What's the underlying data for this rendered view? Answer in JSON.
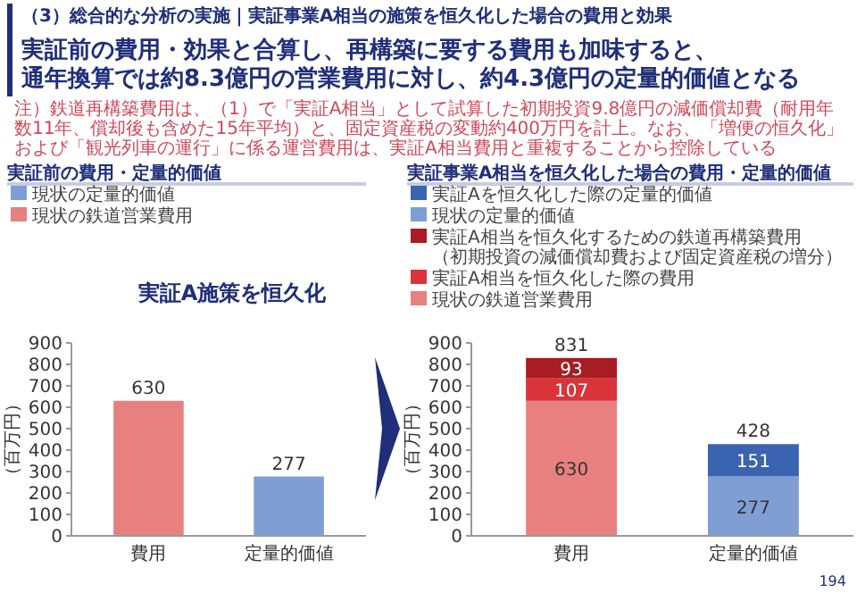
{
  "chart_data": [
    {
      "type": "other",
      "subtitle": "（3）総合的な分析の実施｜実証事業A相当の施策を恒久化した場合の費用と効果",
      "title": "実証前の費用・効果と合算し、再構築に要する費用も加味すると、通年換算では約8.3億円の営業費用に対し、約4.3億円の定量的価値となる",
      "annotations": [
        "注）鉄道再構築費用は、（1）で「実証A相当」として試算した初期投資9.8億円の減価償却費（耐用年数11年、償却後も含めた15年平均）と、固定資産税の変動約400万円を計上。なお、「増便の恒久化」および「観光列車の運行」に係る運営費用は、実証A相当費用と重複することから控除している",
        "実証A施策を恒久化",
        "194"
      ]
    },
    {
      "type": "bar",
      "title": "実証前の費用・定量的価値",
      "ylabel": "（百万円）",
      "categories": [
        "費用",
        "定量的価値"
      ],
      "stacked": true,
      "legend": "top left",
      "data_labels": true,
      "ylim": [
        0,
        900
      ],
      "yticks": [
        0,
        100,
        200,
        300,
        400,
        500,
        600,
        700,
        800,
        900
      ],
      "series": [
        {
          "name": "現状の鉄道営業費用",
          "color": "#e88080",
          "values": [
            630,
            null
          ]
        },
        {
          "name": "現状の定量的価値",
          "color": "#7f9fd4",
          "values": [
            null,
            277
          ]
        }
      ]
    },
    {
      "type": "bar",
      "title": "実証事業A相当を恒久化した場合の費用・定量的価値",
      "ylabel": "（百万円）",
      "categories": [
        "費用",
        "定量的価値"
      ],
      "stacked": true,
      "legend": "top left",
      "data_labels": true,
      "totals": [
        "831",
        "428"
      ],
      "ylim": [
        0,
        900
      ],
      "yticks": [
        0,
        100,
        200,
        300,
        400,
        500,
        600,
        700,
        800,
        900
      ],
      "series": [
        {
          "name": "現状の鉄道営業費用",
          "color": "#e88080",
          "values": [
            630,
            null
          ]
        },
        {
          "name": "実証A相当を恒久化した際の費用",
          "color": "#d9343a",
          "values": [
            107,
            null
          ]
        },
        {
          "name": "実証A相当を恒久化するための鉄道再構築費用（初期投資の減価償却費および固定資産税の増分）",
          "color": "#a81c24",
          "values": [
            93,
            null
          ]
        },
        {
          "name": "現状の定量的価値",
          "color": "#7f9fd4",
          "values": [
            null,
            277
          ]
        },
        {
          "name": "実証Aを恒久化した際の定量的価値",
          "color": "#3b64b0",
          "values": [
            null,
            151
          ]
        }
      ]
    }
  ]
}
